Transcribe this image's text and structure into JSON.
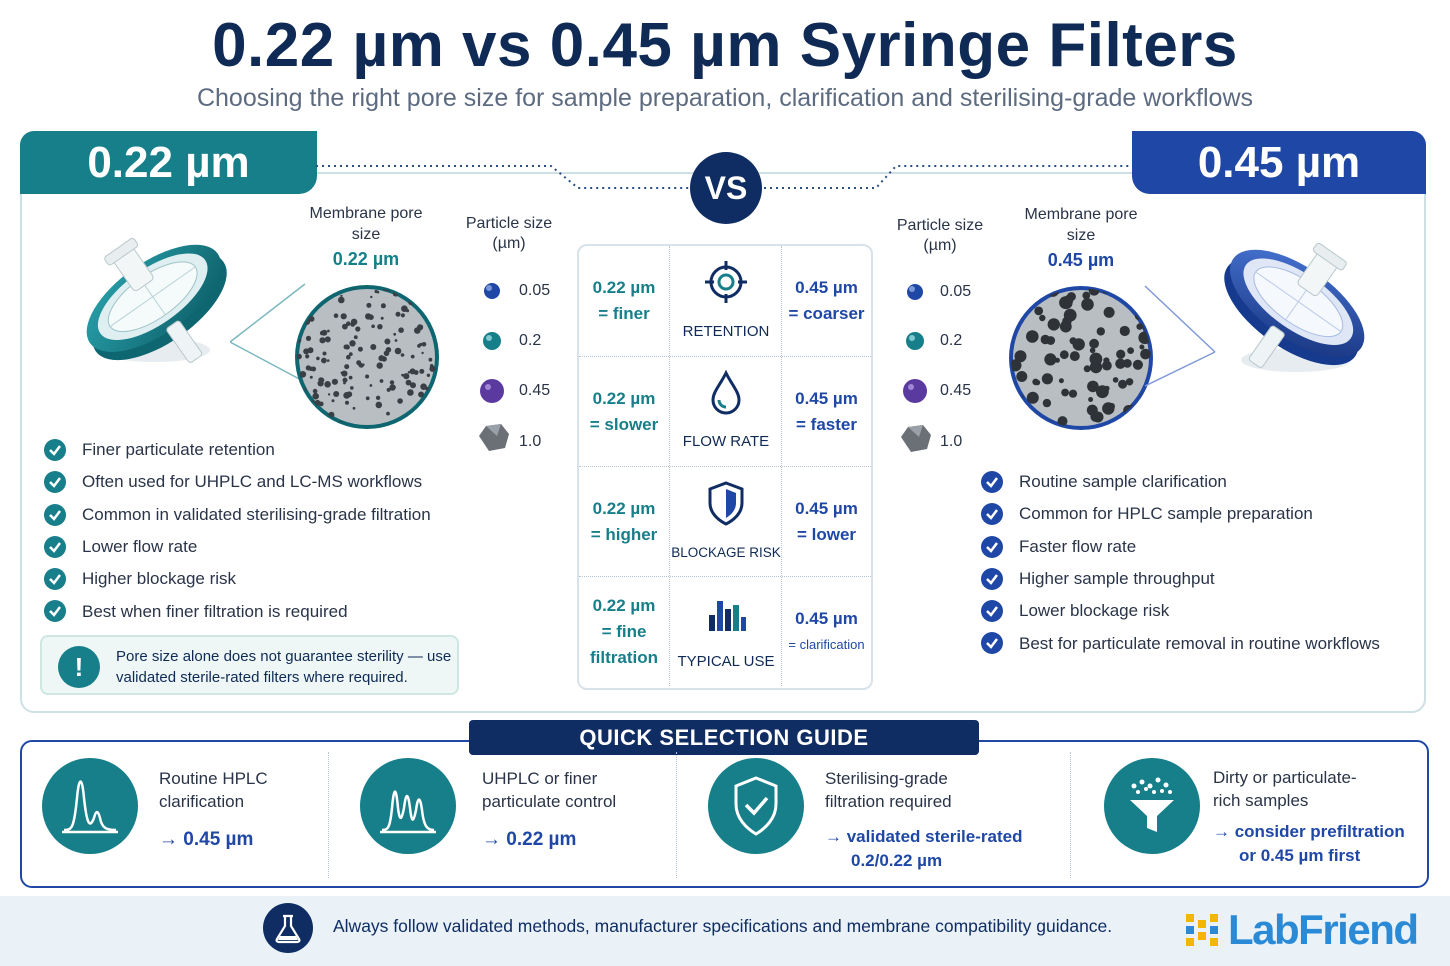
{
  "header": {
    "title": "0.22 µm vs 0.45 µm Syringe Filters",
    "subtitle": "Choosing the right pore size for sample preparation, clarification and sterilising-grade workflows"
  },
  "colors": {
    "teal": "#177f8a",
    "blue": "#1f48a6",
    "navy": "#102d63",
    "text": "#2a3448"
  },
  "vs_label": "VS",
  "left": {
    "tab": "0.22 µm",
    "membrane_title": "Membrane pore size",
    "membrane_value": "0.22 µm",
    "particles_title": "Particle size (µm)",
    "particles": [
      "0.05",
      "0.2",
      "0.45",
      "1.0"
    ],
    "bullets": [
      "Finer particulate retention",
      "Often used for UHPLC and LC-MS workflows",
      "Common in validated sterilising-grade filtration",
      "Lower flow rate",
      "Higher blockage risk",
      "Best when finer filtration is required"
    ],
    "warning": "Pore size alone does not guarantee sterility — use validated sterile-rated filters where required."
  },
  "right": {
    "tab": "0.45 µm",
    "membrane_title": "Membrane pore size",
    "membrane_value": "0.45 µm",
    "particles_title": "Particle size (µm)",
    "particles": [
      "0.05",
      "0.2",
      "0.45",
      "1.0"
    ],
    "bullets": [
      "Routine sample clarification",
      "Common for HPLC sample preparation",
      "Faster flow rate",
      "Higher sample throughput",
      "Lower blockage risk",
      "Best for particulate removal in routine workflows"
    ]
  },
  "comparison": [
    {
      "icon": "target-icon",
      "label": "RETENTION",
      "left": [
        "0.22 µm",
        "= finer"
      ],
      "right": [
        "0.45 µm",
        "= coarser"
      ]
    },
    {
      "icon": "droplet-icon",
      "label": "FLOW RATE",
      "left": [
        "0.22 µm",
        "= slower"
      ],
      "right": [
        "0.45 µm",
        "= faster"
      ]
    },
    {
      "icon": "shield-icon",
      "label": "BLOCKAGE RISK",
      "left": [
        "0.22 µm",
        "= higher"
      ],
      "right": [
        "0.45 µm",
        "= lower"
      ]
    },
    {
      "icon": "bar-chart-icon",
      "label": "TYPICAL USE",
      "left": [
        "0.22 µm",
        "= fine",
        "filtration"
      ],
      "right": [
        "0.45 µm",
        "= clarification"
      ]
    }
  ],
  "quick_guide": {
    "title": "QUICK SELECTION GUIDE",
    "items": [
      {
        "icon": "chromatogram-icon",
        "text": [
          "Routine HPLC",
          "clarification"
        ],
        "result": [
          "→ 0.45 µm"
        ]
      },
      {
        "icon": "chromatogram-peaks-icon",
        "text": [
          "UHPLC or finer",
          "particulate control"
        ],
        "result": [
          "→ 0.22 µm"
        ]
      },
      {
        "icon": "shield-check-icon",
        "text": [
          "Sterilising-grade",
          "filtration required"
        ],
        "result": [
          "→ validated sterile-rated",
          "0.2/0.22 µm"
        ]
      },
      {
        "icon": "funnel-icon",
        "text": [
          "Dirty or particulate-",
          "rich samples"
        ],
        "result": [
          "→ consider prefiltration",
          "or 0.45 µm first"
        ]
      }
    ]
  },
  "footer": {
    "text": "Always follow validated methods, manufacturer specifications and membrane compatibility guidance.",
    "logo": "LabFriend"
  }
}
